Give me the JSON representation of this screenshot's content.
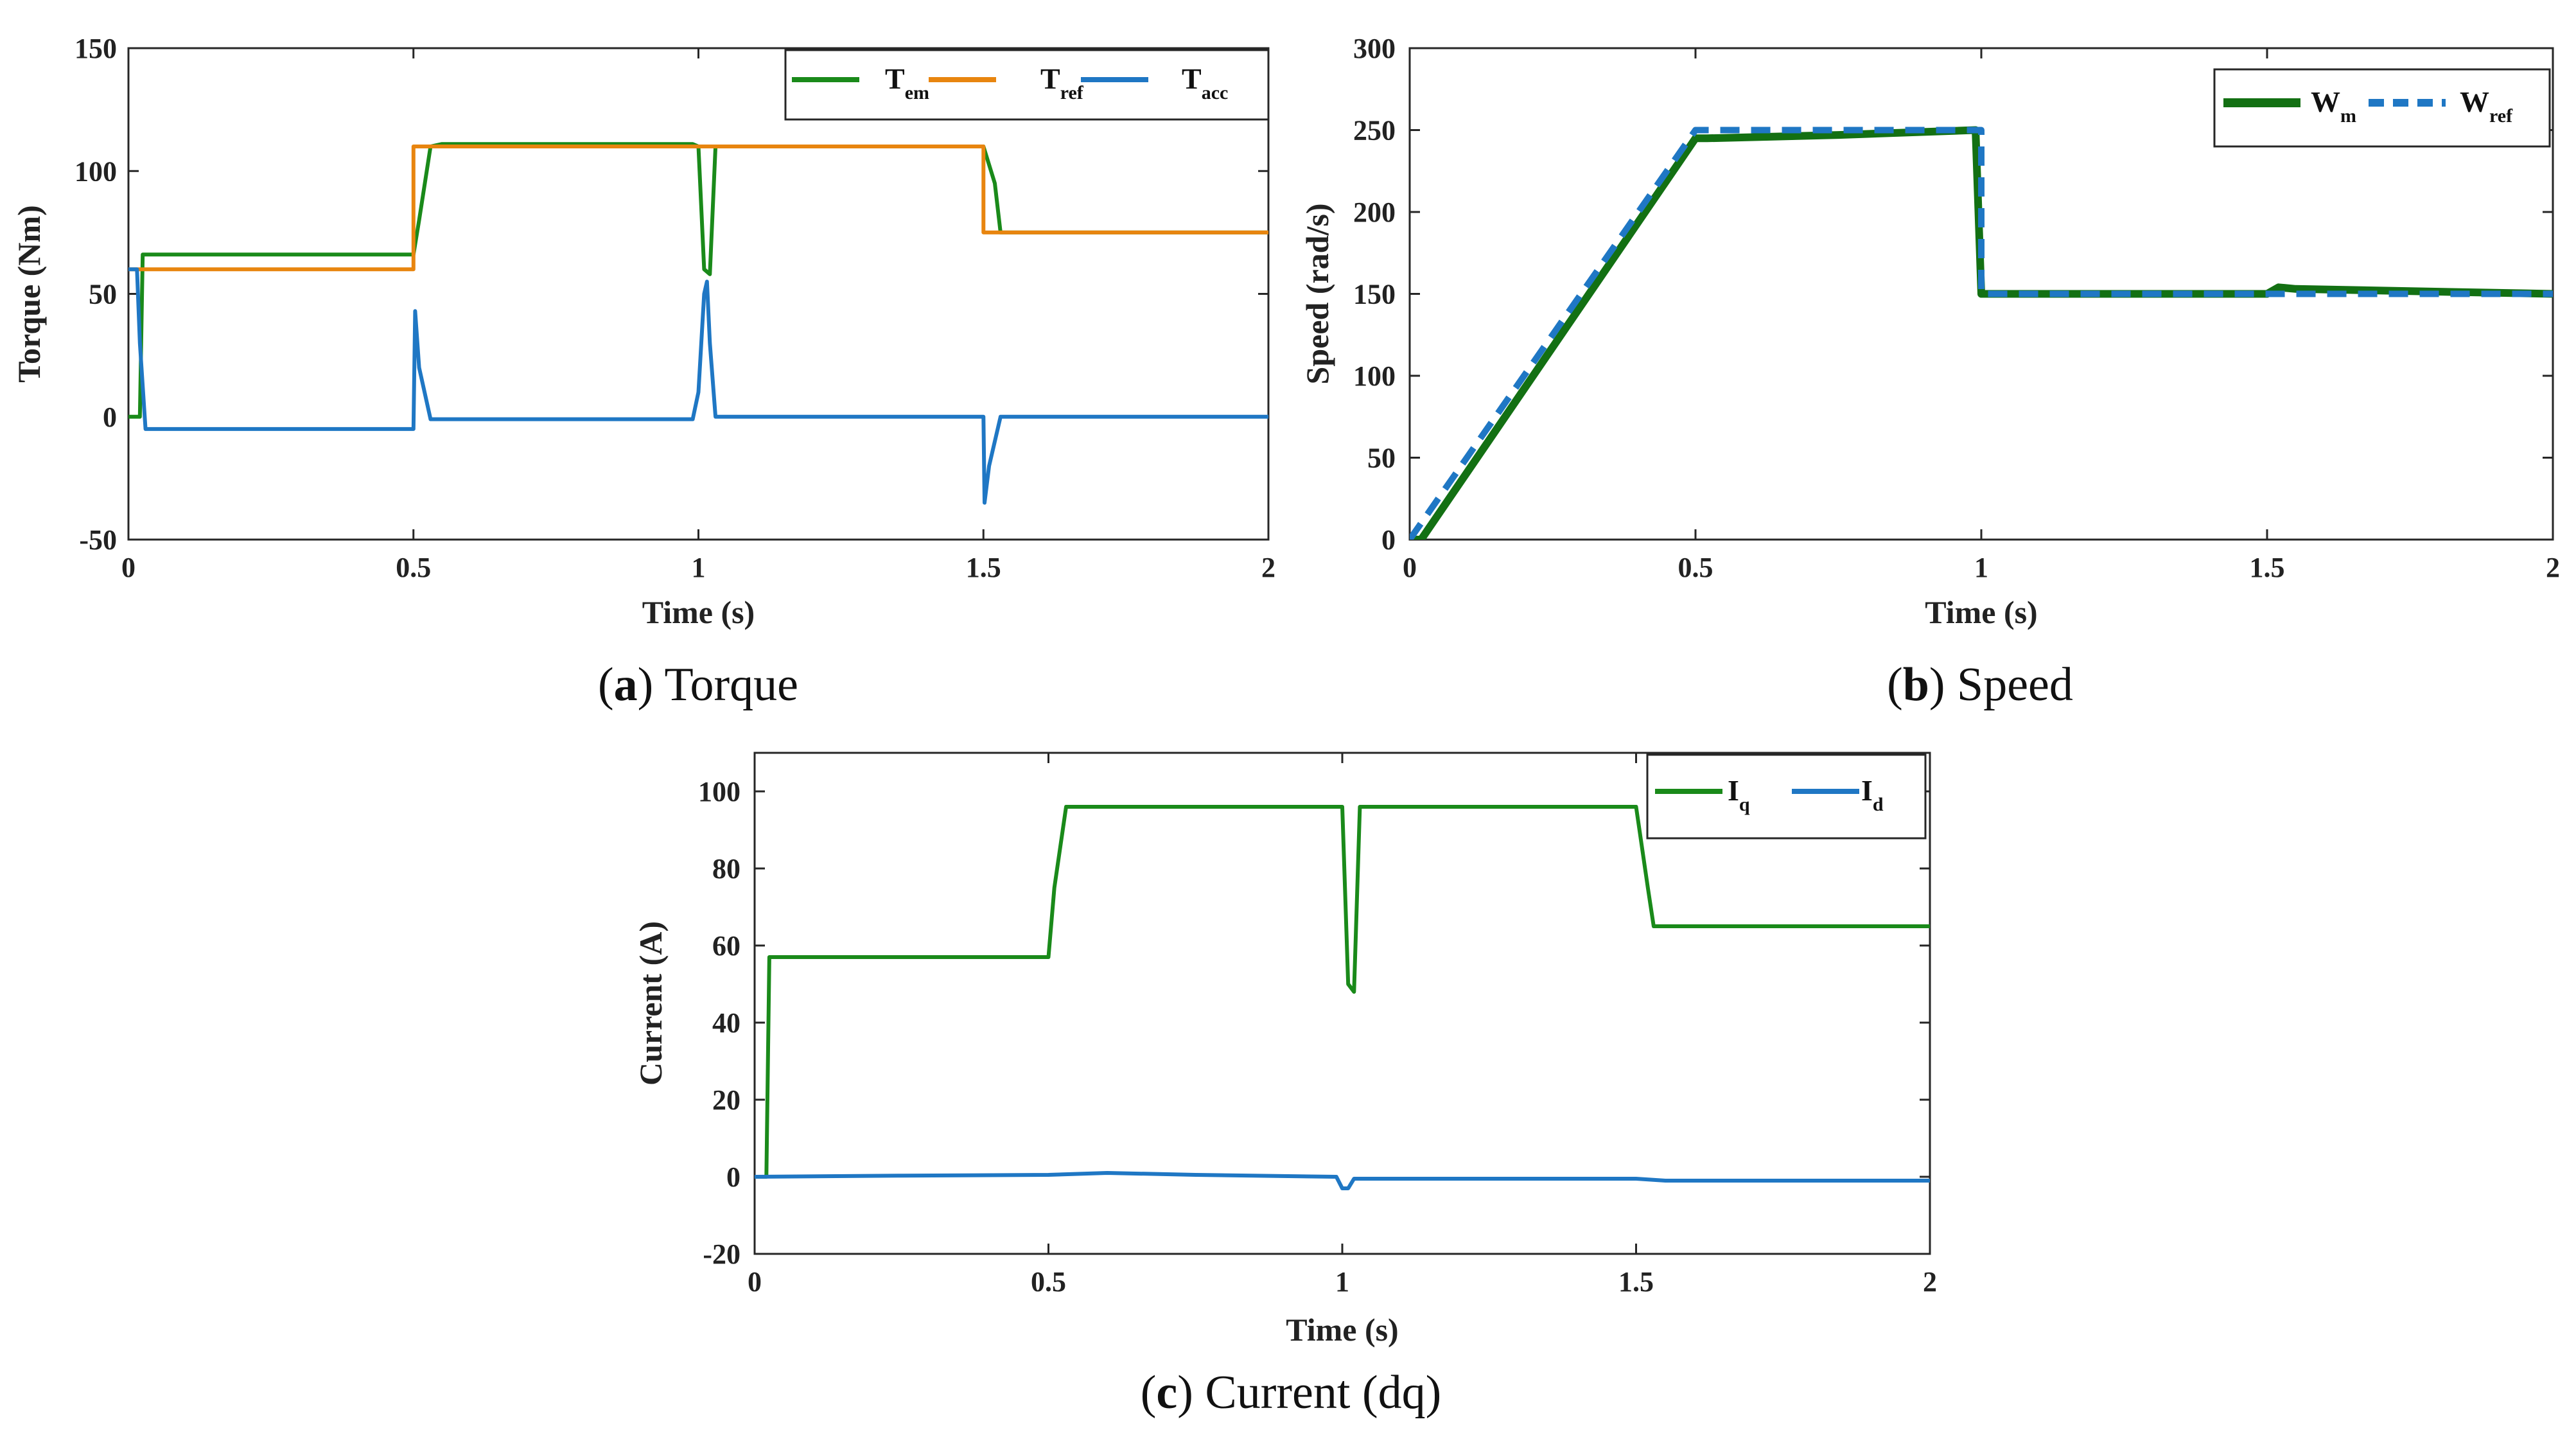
{
  "colors": {
    "green": "#1a8a1a",
    "orange": "#e8850f",
    "blue": "#1f77c4",
    "dark_green": "#137013"
  },
  "charts": [
    {
      "id": "a",
      "caption": {
        "letter": "a",
        "text": "Torque"
      },
      "xlabel": "Time (s)",
      "ylabel": "Torque (Nm)",
      "xlim": [
        0,
        2
      ],
      "ylim": [
        -50,
        150
      ],
      "xticks": [
        "0",
        "0.5",
        "1",
        "1.5",
        "2"
      ],
      "yticks": [
        "-50",
        "0",
        "50",
        "100",
        "150"
      ],
      "legend": [
        {
          "main": "T",
          "sub": "em"
        },
        {
          "main": "T",
          "sub": "ref"
        },
        {
          "main": "T",
          "sub": "acc"
        }
      ]
    },
    {
      "id": "b",
      "caption": {
        "letter": "b",
        "text": "Speed"
      },
      "xlabel": "Time (s)",
      "ylabel": "Speed (rad/s)",
      "xlim": [
        0,
        2
      ],
      "ylim": [
        0,
        300
      ],
      "xticks": [
        "0",
        "0.5",
        "1",
        "1.5",
        "2"
      ],
      "yticks": [
        "0",
        "50",
        "100",
        "150",
        "200",
        "250",
        "300"
      ],
      "legend": [
        {
          "main": "W",
          "sub": "m"
        },
        {
          "main": "W",
          "sub": "ref"
        }
      ]
    },
    {
      "id": "c",
      "caption": {
        "letter": "c",
        "text": "Current (dq)"
      },
      "xlabel": "Time (s)",
      "ylabel": "Current (A)",
      "xlim": [
        0,
        2
      ],
      "ylim": [
        -20,
        110
      ],
      "xticks": [
        "0",
        "0.5",
        "1",
        "1.5",
        "2"
      ],
      "yticks": [
        "-20",
        "0",
        "20",
        "40",
        "60",
        "80",
        "100"
      ],
      "legend": [
        {
          "main": "I",
          "sub": "q"
        },
        {
          "main": "I",
          "sub": "d"
        }
      ]
    }
  ],
  "chart_data": [
    {
      "type": "line",
      "xlabel": "Time (s)",
      "ylabel": "Torque (Nm)",
      "xlim": [
        0,
        2
      ],
      "ylim": [
        -50,
        150
      ],
      "legend_position": "top-right",
      "grid": false,
      "series": [
        {
          "name": "T_em",
          "color": "green",
          "x": [
            0,
            0.02,
            0.025,
            0.5,
            0.51,
            0.53,
            0.55,
            0.99,
            1.0,
            1.01,
            1.02,
            1.03,
            1.5,
            1.52,
            1.53,
            2.0
          ],
          "y": [
            0,
            0,
            66,
            66,
            80,
            110,
            111,
            111,
            110,
            60,
            58,
            110,
            110,
            95,
            75,
            75
          ]
        },
        {
          "name": "T_ref",
          "color": "orange",
          "x": [
            0,
            0.5,
            0.5,
            1.5,
            1.5,
            2.0
          ],
          "y": [
            60,
            60,
            110,
            110,
            75,
            75
          ]
        },
        {
          "name": "T_acc",
          "color": "blue",
          "x": [
            0,
            0.015,
            0.02,
            0.03,
            0.5,
            0.503,
            0.51,
            0.53,
            0.99,
            1.0,
            1.01,
            1.015,
            1.02,
            1.03,
            1.5,
            1.502,
            1.51,
            1.53,
            2.0
          ],
          "y": [
            60,
            60,
            30,
            -5,
            -5,
            43,
            20,
            -1,
            -1,
            10,
            50,
            55,
            30,
            0,
            0,
            -35,
            -20,
            0,
            0
          ]
        }
      ]
    },
    {
      "type": "line",
      "xlabel": "Time (s)",
      "ylabel": "Speed (rad/s)",
      "xlim": [
        0,
        2
      ],
      "ylim": [
        0,
        300
      ],
      "legend_position": "top-right",
      "grid": false,
      "series": [
        {
          "name": "W_m",
          "color": "dark_green",
          "x": [
            0,
            0.02,
            0.5,
            0.52,
            0.75,
            0.99,
            1.0,
            1.01,
            1.5,
            1.52,
            1.55,
            2.0
          ],
          "y": [
            0,
            0,
            245,
            245,
            247,
            250,
            150,
            150,
            150,
            154,
            153,
            150
          ]
        },
        {
          "name": "W_ref",
          "color": "blue",
          "x": [
            0,
            0.5,
            1.0,
            1.0,
            2.0
          ],
          "y": [
            0,
            250,
            250,
            150,
            150
          ]
        }
      ]
    },
    {
      "type": "line",
      "xlabel": "Time (s)",
      "ylabel": "Current (A)",
      "xlim": [
        0,
        2
      ],
      "ylim": [
        -20,
        110
      ],
      "legend_position": "top-right",
      "grid": false,
      "series": [
        {
          "name": "I_q",
          "color": "green",
          "x": [
            0,
            0.02,
            0.025,
            0.5,
            0.51,
            0.53,
            0.99,
            1.0,
            1.01,
            1.02,
            1.03,
            1.5,
            1.52,
            1.53,
            2.0
          ],
          "y": [
            0,
            0,
            57,
            57,
            75,
            96,
            96,
            96,
            50,
            48,
            96,
            96,
            75,
            65,
            65
          ]
        },
        {
          "name": "I_d",
          "color": "blue",
          "x": [
            0,
            0.25,
            0.5,
            0.6,
            0.75,
            0.99,
            1.0,
            1.01,
            1.02,
            1.5,
            1.55,
            2.0
          ],
          "y": [
            0,
            0.3,
            0.5,
            1,
            0.5,
            0,
            -3,
            -3,
            -0.5,
            -0.5,
            -1,
            -1
          ]
        }
      ]
    }
  ]
}
